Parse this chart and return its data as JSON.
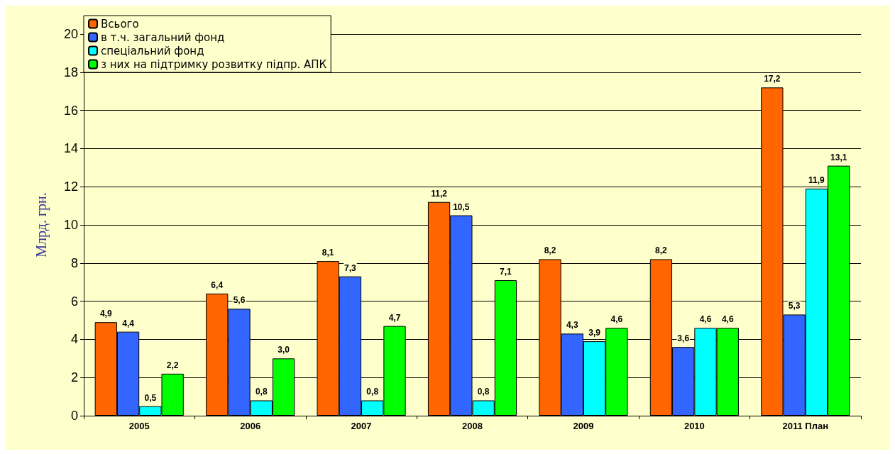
{
  "chart_data": {
    "type": "bar",
    "ylabel": "Млрд. грн.",
    "categories": [
      "2005",
      "2006",
      "2007",
      "2008",
      "2009",
      "2010",
      "2011 План"
    ],
    "series": [
      {
        "name": "Всього",
        "color": "#ff6600",
        "values": [
          4.9,
          6.4,
          8.1,
          11.2,
          8.2,
          8.2,
          17.2
        ],
        "value_labels": [
          "4,9",
          "6,4",
          "8,1",
          "11,2",
          "8,2",
          "8,2",
          "17,2"
        ]
      },
      {
        "name": "в т.ч. загальний фонд",
        "color": "#3366ff",
        "values": [
          4.4,
          5.6,
          7.3,
          10.5,
          4.3,
          3.6,
          5.3
        ],
        "value_labels": [
          "4,4",
          "5,6",
          "7,3",
          "10,5",
          "4,3",
          "3,6",
          "5,3"
        ]
      },
      {
        "name": "спеціальний фонд",
        "color": "#00ffff",
        "values": [
          0.5,
          0.8,
          0.8,
          0.8,
          3.9,
          4.6,
          11.9
        ],
        "value_labels": [
          "0,5",
          "0,8",
          "0,8",
          "0,8",
          "3,9",
          "4,6",
          "11,9"
        ]
      },
      {
        "name": "з них на підтримку розвитку підпр. АПК",
        "color": "#00ff00",
        "values": [
          2.2,
          3.0,
          4.7,
          7.1,
          4.6,
          4.6,
          13.1
        ],
        "value_labels": [
          "2,2",
          "3,0",
          "4,7",
          "7,1",
          "4,6",
          "4,6",
          "13,1"
        ]
      }
    ],
    "ylim": [
      0,
      20
    ],
    "yticks": [
      0,
      2,
      4,
      6,
      8,
      10,
      12,
      14,
      16,
      18,
      20
    ],
    "grid": "y",
    "legend": "top left"
  }
}
